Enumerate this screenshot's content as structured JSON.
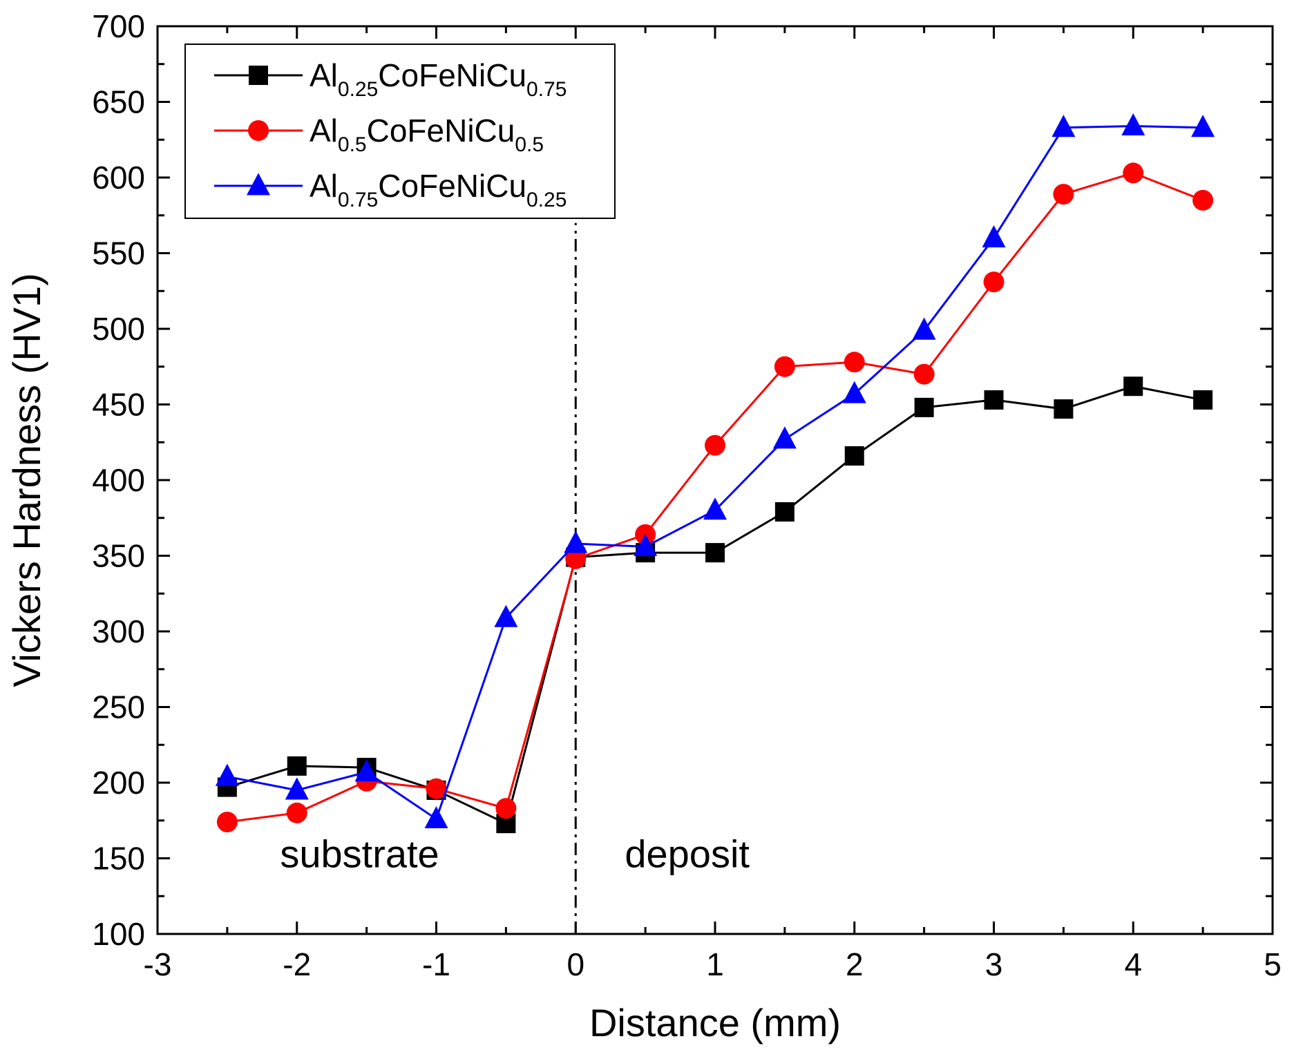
{
  "chart_data": {
    "type": "line",
    "title": "",
    "xlabel": "Distance (mm)",
    "ylabel": "Vickers Hardness (HV1)",
    "xlim": [
      -3,
      5
    ],
    "ylim": [
      100,
      700
    ],
    "xticks": [
      -3,
      -2,
      -1,
      0,
      1,
      2,
      3,
      4,
      5
    ],
    "yticks": [
      100,
      150,
      200,
      250,
      300,
      350,
      400,
      450,
      500,
      550,
      600,
      650,
      700
    ],
    "x": [
      -2.5,
      -2.0,
      -1.5,
      -1.0,
      -0.5,
      0.0,
      0.5,
      1.0,
      1.5,
      2.0,
      2.5,
      3.0,
      3.5,
      4.0,
      4.5
    ],
    "series": [
      {
        "name": "Al0.25CoFeNiCu0.75",
        "legend_parts": [
          {
            "text": "Al",
            "sub": false
          },
          {
            "text": "0.25",
            "sub": true
          },
          {
            "text": "CoFeNiCu",
            "sub": false
          },
          {
            "text": "0.75",
            "sub": true
          }
        ],
        "color": "#000000",
        "marker": "square",
        "values": [
          197,
          211,
          210,
          195,
          173,
          349,
          352,
          352,
          379,
          416,
          448,
          453,
          447,
          462,
          453
        ]
      },
      {
        "name": "Al0.5CoFeNiCu0.5",
        "legend_parts": [
          {
            "text": "Al",
            "sub": false
          },
          {
            "text": "0.5",
            "sub": true
          },
          {
            "text": "CoFeNiCu",
            "sub": false
          },
          {
            "text": "0.5",
            "sub": true
          }
        ],
        "color": "#ff0000",
        "marker": "circle",
        "values": [
          174,
          180,
          201,
          196,
          183,
          348,
          364,
          423,
          475,
          478,
          470,
          531,
          589,
          603,
          585
        ]
      },
      {
        "name": "Al0.75CoFeNiCu0.25",
        "legend_parts": [
          {
            "text": "Al",
            "sub": false
          },
          {
            "text": "0.75",
            "sub": true
          },
          {
            "text": "CoFeNiCu",
            "sub": false
          },
          {
            "text": "0.25",
            "sub": true
          }
        ],
        "color": "#0000ff",
        "marker": "triangle",
        "values": [
          204,
          195,
          207,
          176,
          309,
          358,
          356,
          380,
          427,
          457,
          499,
          560,
          633,
          634,
          633
        ]
      }
    ],
    "annotations": [
      {
        "text": "substrate",
        "x": -1.55,
        "y": 144
      },
      {
        "text": "deposit",
        "x": 0.8,
        "y": 144
      }
    ],
    "reference_line": {
      "x": 0,
      "style": "dash-dot",
      "y_from": 100,
      "y_to": 570
    },
    "legend_position": "top-left"
  }
}
